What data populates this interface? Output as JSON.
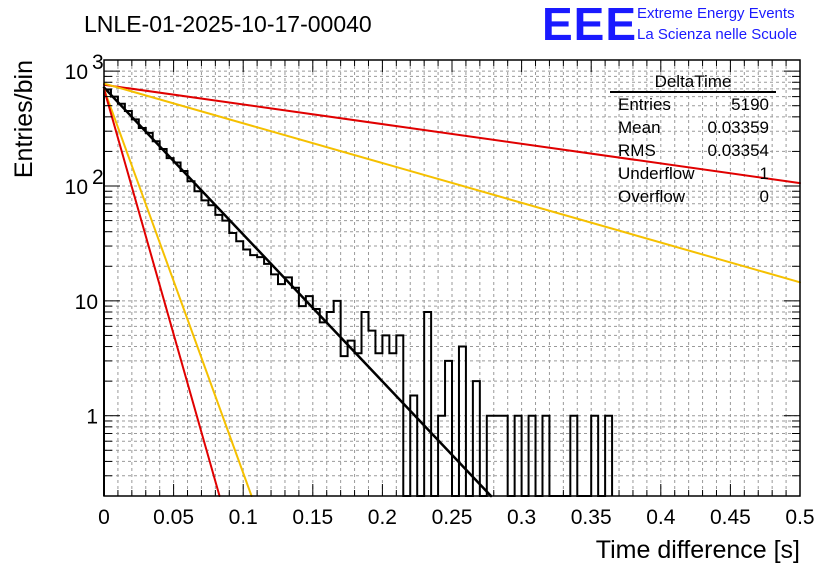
{
  "chart_data": {
    "type": "histogram",
    "title": "LNLE-01-2025-10-17-00040",
    "xlabel": "Time difference [s]",
    "ylabel": "Entries/bin",
    "xlim": [
      0,
      0.5
    ],
    "ylim": [
      0.2,
      1250
    ],
    "yscale": "log",
    "grid": true,
    "bin_width": 0.005,
    "x_ticks": [
      "0",
      "0.05",
      "0.1",
      "0.15",
      "0.2",
      "0.25",
      "0.3",
      "0.35",
      "0.4",
      "0.45",
      "0.5"
    ],
    "y_ticks": [
      {
        "value": 1,
        "label": "1"
      },
      {
        "value": 10,
        "label": "10"
      },
      {
        "value": 100,
        "label": "10",
        "exp": "2"
      },
      {
        "value": 1000,
        "label": "10",
        "exp": "3"
      }
    ],
    "counts": [
      690,
      600,
      520,
      450,
      380,
      320,
      290,
      245,
      210,
      175,
      160,
      135,
      110,
      90,
      75,
      68,
      56,
      50,
      39,
      33,
      28,
      25,
      24,
      21,
      17,
      14,
      16,
      13,
      9,
      11,
      8.5,
      6.5,
      8,
      10,
      3.3,
      4.5,
      3.5,
      8,
      5.5,
      3.5,
      5,
      3.5,
      5,
      0,
      1.5,
      0,
      8,
      0,
      1,
      3,
      0,
      4,
      0,
      2,
      0,
      1,
      1,
      1,
      0,
      1,
      0,
      1,
      0,
      1,
      0,
      0,
      0,
      1,
      0,
      0,
      1,
      0,
      1
    ],
    "fits": [
      {
        "name": "fit",
        "color": "#000000",
        "x0": 0.0,
        "y0": 720,
        "x1": 0.278,
        "y1": 0.2,
        "width": 2.5
      },
      {
        "name": "slope-bound-1",
        "color": "#e00000",
        "x0": 0.0,
        "y0": 760,
        "x1": 0.5,
        "y1": 106,
        "width": 2
      },
      {
        "name": "slope-bound-2",
        "color": "#f5c000",
        "x0": 0.0,
        "y0": 780,
        "x1": 0.5,
        "y1": 14.5,
        "width": 2
      },
      {
        "name": "slope-bound-3",
        "color": "#f5c000",
        "x0": 0.0,
        "y0": 700,
        "x1": 0.106,
        "y1": 0.2,
        "width": 2
      },
      {
        "name": "slope-bound-4",
        "color": "#e00000",
        "x0": 0.0,
        "y0": 700,
        "x1": 0.083,
        "y1": 0.2,
        "width": 2
      }
    ],
    "stats": {
      "title": "DeltaTime",
      "rows": [
        {
          "label": "Entries",
          "value": "5190"
        },
        {
          "label": "Mean",
          "value": "0.03359"
        },
        {
          "label": "RMS",
          "value": "0.03354"
        },
        {
          "label": "Underflow",
          "value": "1"
        },
        {
          "label": "Overflow",
          "value": "0"
        }
      ]
    }
  },
  "logo": {
    "mark": "EEE",
    "line1": "Extreme Energy Events",
    "line2": "La Scienza nelle Scuole"
  },
  "colors": {
    "histogram": "#000000",
    "logo": "#1a1aff",
    "grid": "#9a9a9a"
  }
}
